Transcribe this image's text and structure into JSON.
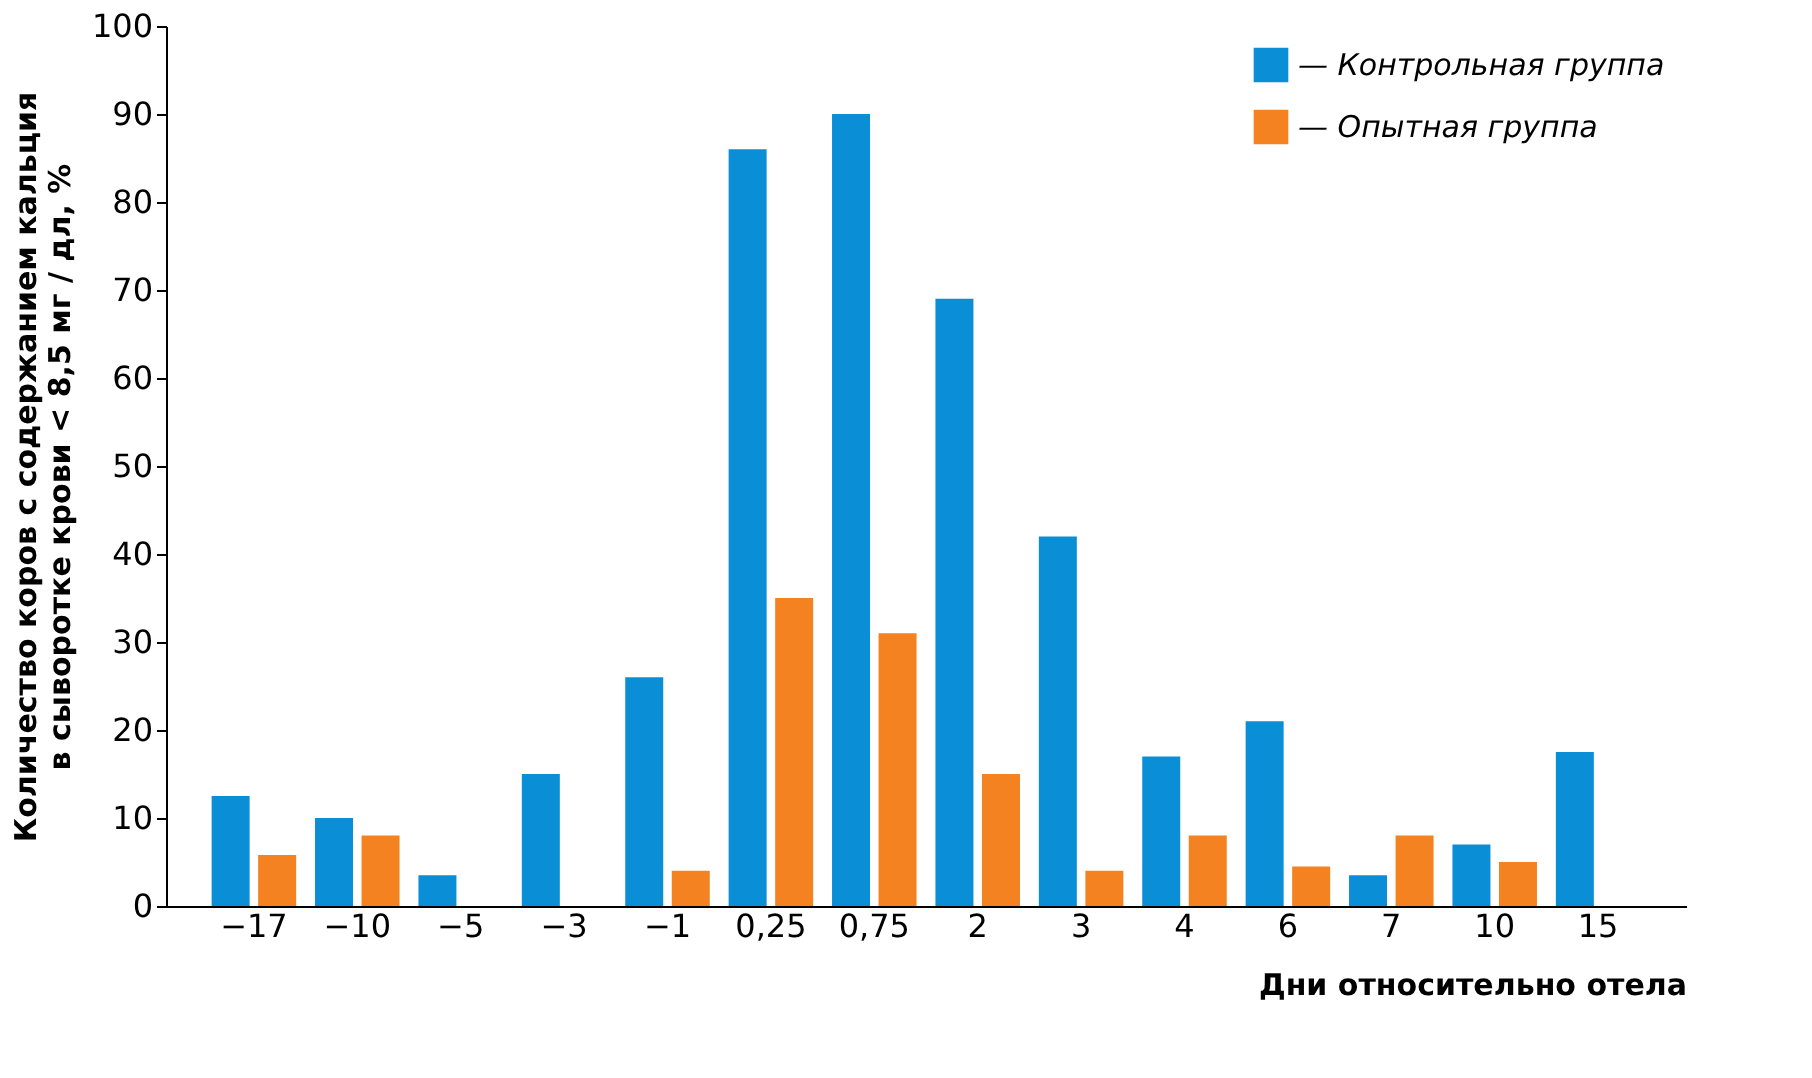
{
  "chart_data": {
    "type": "bar",
    "xlabel": "Дни относительно отела",
    "ylabel": "Количество коров с содержанием кальция\nв сыворотке крови < 8,5 мг / дл, %",
    "categories": [
      "−17",
      "−10",
      "−5",
      "−3",
      "−1",
      "0,25",
      "0,75",
      "2",
      "3",
      "4",
      "6",
      "7",
      "10",
      "15"
    ],
    "series": [
      {
        "name": "— Контрольная группа",
        "color": "#0a8fd6",
        "values": [
          12.5,
          10,
          3.5,
          15,
          26,
          86,
          90,
          69,
          42,
          17,
          21,
          3.5,
          7,
          17.5
        ]
      },
      {
        "name": "— Опытная группа",
        "color": "#f58220",
        "values": [
          5.8,
          8,
          null,
          null,
          4,
          35,
          31,
          15,
          4,
          8,
          4.5,
          8,
          5,
          null
        ]
      }
    ],
    "ylim": [
      0,
      100
    ],
    "yticks": [
      0,
      10,
      20,
      30,
      40,
      50,
      60,
      70,
      80,
      90,
      100
    ],
    "grid": false,
    "legend": "top right"
  }
}
